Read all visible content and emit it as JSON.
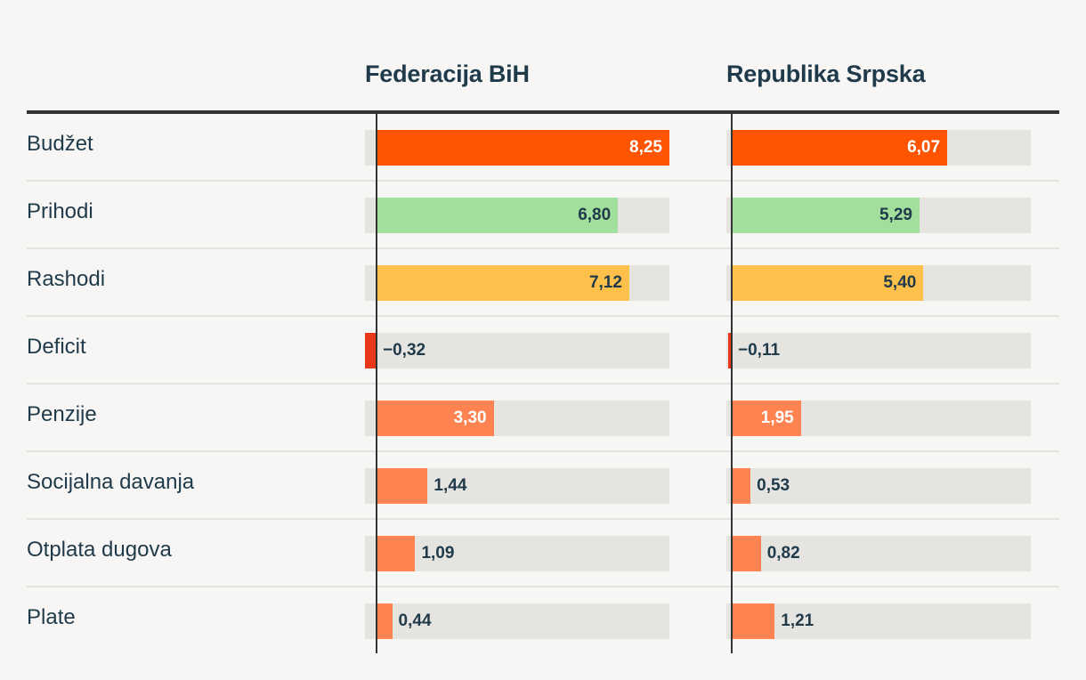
{
  "chart_data": {
    "type": "bar",
    "orientation": "horizontal",
    "columns": [
      "Federacija BiH",
      "Republika Srpska"
    ],
    "categories": [
      "Budžet",
      "Prihodi",
      "Rashodi",
      "Deficit",
      "Penzije",
      "Socijalna davanja",
      "Otplata dugova",
      "Plate"
    ],
    "series": [
      {
        "name": "Federacija BiH",
        "values": [
          8.25,
          6.8,
          7.12,
          -0.32,
          3.3,
          1.44,
          1.09,
          0.44
        ],
        "labels": [
          "8,25",
          "6,80",
          "7,12",
          "−0,32",
          "3,30",
          "1,44",
          "1,09",
          "0,44"
        ]
      },
      {
        "name": "Republika Srpska",
        "values": [
          6.07,
          5.29,
          5.4,
          -0.11,
          1.95,
          0.53,
          0.82,
          1.21
        ],
        "labels": [
          "6,07",
          "5,29",
          "5,40",
          "−0,11",
          "1,95",
          "0,53",
          "0,82",
          "1,21"
        ]
      }
    ],
    "xlim": [
      -0.32,
      8.25
    ],
    "category_colors": [
      "#ff5500",
      "#a3df9c",
      "#fdc04a",
      "#e8371b",
      "#ff8350",
      "#ff8350",
      "#ff8350",
      "#ff8350"
    ]
  }
}
